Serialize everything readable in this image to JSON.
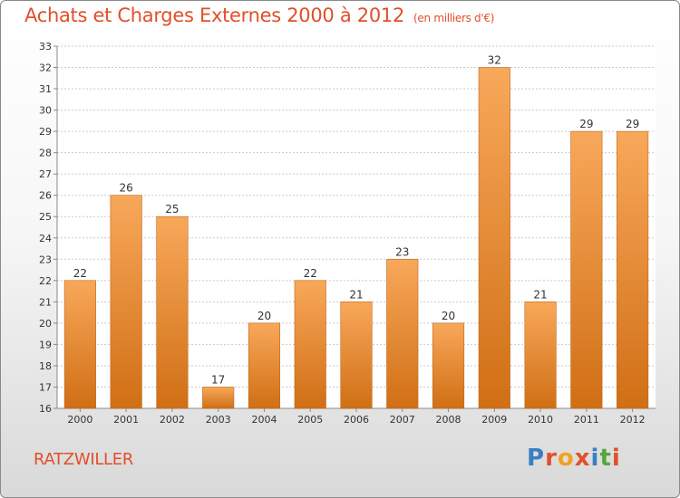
{
  "header": {
    "title": "Achats et Charges Externes 2000 à 2012",
    "unit": "(en milliers d'€)"
  },
  "footer": {
    "city": "RATZWILLER",
    "logo_text": "Proxiti",
    "logo_colors": [
      "#3a7fc1",
      "#e0502a",
      "#f1a21f",
      "#e0502a",
      "#3a7fc1",
      "#54a83c",
      "#e0502a"
    ]
  },
  "chart_data": {
    "type": "bar",
    "categories": [
      "2000",
      "2001",
      "2002",
      "2003",
      "2004",
      "2005",
      "2006",
      "2007",
      "2008",
      "2009",
      "2010",
      "2011",
      "2012"
    ],
    "values": [
      22,
      26,
      25,
      17,
      20,
      22,
      21,
      23,
      20,
      32,
      21,
      29,
      29
    ],
    "data_labels": [
      "22",
      "26",
      "25",
      "17",
      "20",
      "22",
      "21",
      "23",
      "20",
      "32",
      "21",
      "29",
      "29"
    ],
    "ylim": [
      16,
      33
    ],
    "yticks": [
      "16",
      "17",
      "18",
      "19",
      "20",
      "21",
      "22",
      "23",
      "24",
      "25",
      "26",
      "27",
      "28",
      "29",
      "30",
      "31",
      "32",
      "33"
    ],
    "grid": true,
    "bar_color_top": "#f8a85a",
    "bar_color_bottom": "#d06f15"
  }
}
